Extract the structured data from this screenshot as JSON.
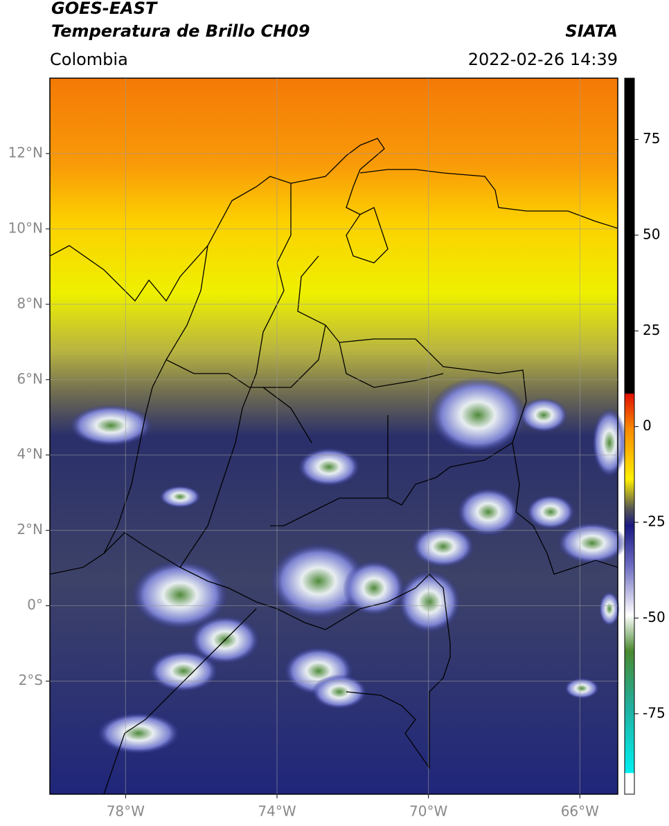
{
  "header": {
    "title_line1": "GOES-EAST",
    "title_line2": "Temperatura de Brillo CH09",
    "region": "Colombia",
    "source": "SIATA",
    "timestamp": "2022-02-26 14:39"
  },
  "map": {
    "lonlim": [
      -80,
      -65
    ],
    "latlim": [
      -5,
      14
    ],
    "lon_ticks": [
      {
        "value": -78,
        "label": "78°W"
      },
      {
        "value": -74,
        "label": "74°W"
      },
      {
        "value": -70,
        "label": "70°W"
      },
      {
        "value": -66,
        "label": "66°W"
      }
    ],
    "lat_ticks": [
      {
        "value": 12,
        "label": "12°N"
      },
      {
        "value": 10,
        "label": "10°N"
      },
      {
        "value": 8,
        "label": "8°N"
      },
      {
        "value": 6,
        "label": "6°N"
      },
      {
        "value": 4,
        "label": "4°N"
      },
      {
        "value": 2,
        "label": "2°N"
      },
      {
        "value": 0,
        "label": "0°"
      },
      {
        "value": -2,
        "label": "2°S"
      }
    ]
  },
  "colorbar": {
    "clim": [
      -96,
      91
    ],
    "ticks": [
      75,
      50,
      25,
      0,
      -25,
      -50,
      -75
    ]
  }
}
